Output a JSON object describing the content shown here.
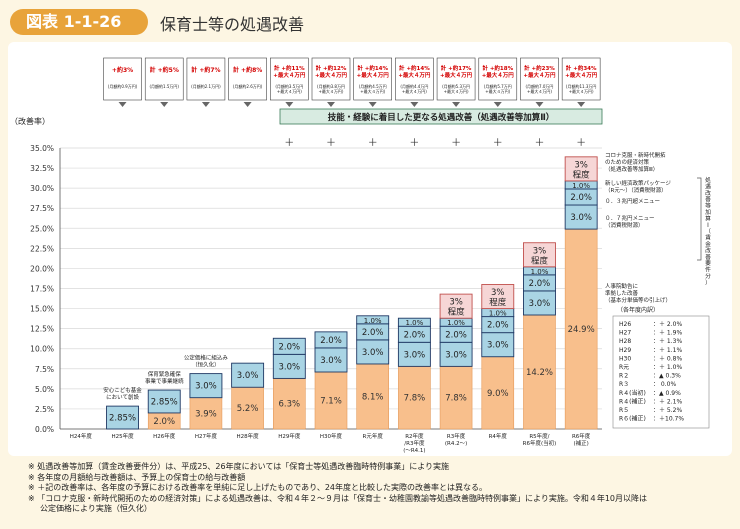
{
  "header": {
    "badge": "図表 1-1-26",
    "title": "保育士等の処遇改善"
  },
  "chart_data": {
    "type": "bar",
    "ylabel": "（改善率）",
    "ylim": [
      0,
      35
    ],
    "yticks": [
      "0.0%",
      "2.5%",
      "5.0%",
      "7.5%",
      "10.0%",
      "12.5%",
      "15.0%",
      "17.5%",
      "20.0%",
      "22.5%",
      "25.0%",
      "27.5%",
      "30.0%",
      "32.5%",
      "35.0%"
    ],
    "categories": [
      "H24年度",
      "H25年度",
      "H26年度",
      "H27年度",
      "H28年度",
      "H29年度",
      "H30年度",
      "R元年度",
      "R2年度\n/R3年度\n(～R4.1)",
      "R3年度\n(R4.2～)",
      "R4年度",
      "R5年度/\nR6年度(当初)",
      "R6年度\n(補正)"
    ],
    "base": [
      null,
      null,
      2.0,
      3.9,
      5.2,
      6.3,
      7.1,
      8.1,
      7.8,
      7.8,
      9.0,
      14.2,
      24.9
    ],
    "base_labels": [
      "",
      "",
      "2.0%",
      "3.9%",
      "5.2%",
      "6.3%",
      "7.1%",
      "8.1%",
      "7.8%",
      "7.8%",
      "9.0%",
      "14.2%",
      "24.9%"
    ],
    "segments": [
      [],
      [
        {
          "v": 2.85,
          "label": "2.85%",
          "kind": "blue"
        }
      ],
      [
        {
          "v": 2.85,
          "label": "2.85%",
          "kind": "blue"
        }
      ],
      [
        {
          "v": 3.0,
          "label": "3.0%",
          "kind": "blue"
        }
      ],
      [
        {
          "v": 3.0,
          "label": "3.0%",
          "kind": "blue"
        }
      ],
      [
        {
          "v": 3.0,
          "label": "3.0%",
          "kind": "blue"
        },
        {
          "v": 2.0,
          "label": "2.0%",
          "kind": "blue"
        }
      ],
      [
        {
          "v": 3.0,
          "label": "3.0%",
          "kind": "blue"
        },
        {
          "v": 2.0,
          "label": "2.0%",
          "kind": "blue"
        }
      ],
      [
        {
          "v": 3.0,
          "label": "3.0%",
          "kind": "blue"
        },
        {
          "v": 2.0,
          "label": "2.0%",
          "kind": "blue"
        },
        {
          "v": 1.0,
          "label": "1.0%",
          "kind": "blue"
        }
      ],
      [
        {
          "v": 3.0,
          "label": "3.0%",
          "kind": "blue"
        },
        {
          "v": 2.0,
          "label": "2.0%",
          "kind": "blue"
        },
        {
          "v": 1.0,
          "label": "1.0%",
          "kind": "blue"
        }
      ],
      [
        {
          "v": 3.0,
          "label": "3.0%",
          "kind": "blue"
        },
        {
          "v": 2.0,
          "label": "2.0%",
          "kind": "blue"
        },
        {
          "v": 1.0,
          "label": "1.0%",
          "kind": "blue"
        },
        {
          "v": 3.0,
          "label": "3%\n程度",
          "kind": "pink"
        }
      ],
      [
        {
          "v": 3.0,
          "label": "3.0%",
          "kind": "blue"
        },
        {
          "v": 2.0,
          "label": "2.0%",
          "kind": "blue"
        },
        {
          "v": 1.0,
          "label": "1.0%",
          "kind": "blue"
        },
        {
          "v": 3.0,
          "label": "3%\n程度",
          "kind": "pink"
        }
      ],
      [
        {
          "v": 3.0,
          "label": "3.0%",
          "kind": "blue"
        },
        {
          "v": 2.0,
          "label": "2.0%",
          "kind": "blue"
        },
        {
          "v": 1.0,
          "label": "1.0%",
          "kind": "blue"
        },
        {
          "v": 3.0,
          "label": "3%\n程度",
          "kind": "pink"
        }
      ],
      [
        {
          "v": 3.0,
          "label": "3.0%",
          "kind": "blue"
        },
        {
          "v": 2.0,
          "label": "2.0%",
          "kind": "blue"
        },
        {
          "v": 1.0,
          "label": "1.0%",
          "kind": "blue"
        },
        {
          "v": 3.0,
          "label": "3%\n程度",
          "kind": "pink"
        }
      ]
    ],
    "bar_annotations": [
      {
        "index": 1,
        "text": "安心こども基金\nにおいて創設"
      },
      {
        "index": 2,
        "text": "保育緊急確保\n事業で事業継続"
      },
      {
        "index": 3,
        "text": "公定価格に組込み\n（恒久化）"
      }
    ],
    "top_boxes": [
      {
        "l1": "+約3%",
        "l2": "(月額約0.9万円)"
      },
      {
        "l1": "計 +約5%",
        "l2": "(月額約1.5万円)"
      },
      {
        "l1": "計 +約7%",
        "l2": "(月額約2.1万円)"
      },
      {
        "l1": "計 +約8%",
        "l2": "(月額約2.6万円)"
      },
      {
        "l1": "計 +約11% +最大４万円",
        "l2": "(月額約3.5万円 +最大４万円)"
      },
      {
        "l1": "計 +約12% +最大４万円",
        "l2": "(月額約3.8万円 +最大４万円)"
      },
      {
        "l1": "計 +約14% +最大４万円",
        "l2": "(月額約4.5万円 +最大４万円)"
      },
      {
        "l1": "計 +約14% +最大４万円",
        "l2": "(月額約4.4万円 +最大４万円)"
      },
      {
        "l1": "計 +約17% +最大４万円",
        "l2": "(月額約5.3万円 +最大４万円)"
      },
      {
        "l1": "計 +約18% +最大４万円",
        "l2": "(月額約5.7万円 +最大４万円)"
      },
      {
        "l1": "計 +約23% +最大４万円",
        "l2": "(月額約7.0万円 +最大４万円)"
      },
      {
        "l1": "計 +約34% +最大４万円",
        "l2": "(月額約11.3万円 +最大４万円)"
      }
    ],
    "skill_banner": "技能・経験に着目した更なる処遇改善（処遇改善等加算Ⅱ）",
    "plus": "＋",
    "side_notes": {
      "covid": "コロナ克服・新時代開拓\nのための経済対策\n（処遇改善等加算Ⅲ）",
      "pkg": "新しい経済政策パッケージ\n（R元～）（消費税財源）",
      "menu3": "０．３兆円超メニュー",
      "menu7": "０．７兆円メニュー\n（消費税財源）",
      "vertical": "処遇改善等加算Ⅰ（賃金改善要件分）",
      "jinji": "人事院勧告に\n準拠した改善\n（基本分単価等の引上げ）",
      "breakdown_title": "（各年度内訳）"
    },
    "breakdown": [
      {
        "y": "H26",
        "v": "：＋ 2.0%"
      },
      {
        "y": "H27",
        "v": "：＋ 1.9%"
      },
      {
        "y": "H28",
        "v": "：＋ 1.3%"
      },
      {
        "y": "H29",
        "v": "：＋ 1.1%"
      },
      {
        "y": "H30",
        "v": "：＋ 0.8%"
      },
      {
        "y": "R元",
        "v": "：＋ 1.0%"
      },
      {
        "y": "R２",
        "v": "：▲ 0.3%"
      },
      {
        "y": "R３",
        "v": "： 0.0%"
      },
      {
        "y": "R４(当初)",
        "v": "：▲ 0.9%"
      },
      {
        "y": "R４(補正)",
        "v": "：＋ 2.1%"
      },
      {
        "y": "R５",
        "v": "：＋ 5.2%"
      },
      {
        "y": "R６(補正)",
        "v": "：＋10.7%"
      }
    ]
  },
  "notes": [
    "※ 処遇改善等加算（賃金改善要件分）は、平成25、26年度においては「保育士等処遇改善臨時特例事業」により実施",
    "※ 各年度の月額給与改善額は、予算上の保育士の給与改善額",
    "※ ＋記の改善率は、各年度の予算における改善率を単純に足し上げたものであり、24年度と比較した実際の改善率とは異なる。",
    "※ 「コロナ克服・新時代開拓のための経済対策」による処遇改善は、令和４年２～９月は「保育士・幼稚園教諭等処遇改善臨時特例事業」により実施。令和４年10月以降は",
    "公定価格により実施（恒久化）"
  ],
  "colors": {
    "orange": "#f8bf8c",
    "blue": "#a9d4e4",
    "pink": "#f6d6d6",
    "badge": "#e8a33a",
    "red": "#d40000",
    "banner": "#d8ebe1"
  }
}
